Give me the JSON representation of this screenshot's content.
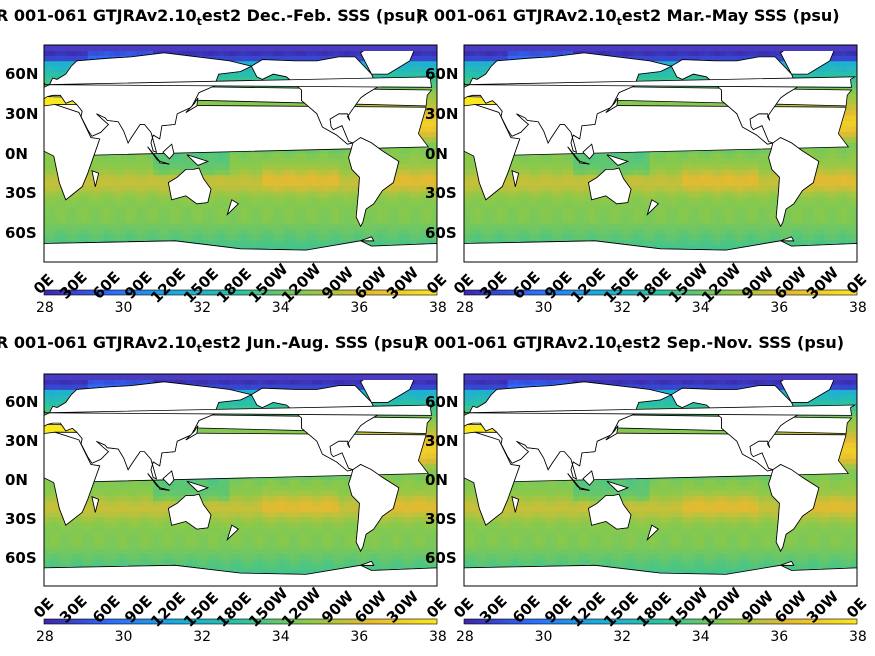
{
  "figure": {
    "panels": [
      {
        "title_pre": "R 001-061 GTJRAv2.10",
        "title_sub": "t",
        "title_post": "est2 Dec.-Feb. SSS (psu)"
      },
      {
        "title_pre": "R 001-061 GTJRAv2.10",
        "title_sub": "t",
        "title_post": "est2 Mar.-May SSS (psu)"
      },
      {
        "title_pre": "R 001-061 GTJRAv2.10",
        "title_sub": "t",
        "title_post": "est2 Jun.-Aug. SSS (psu)"
      },
      {
        "title_pre": "R 001-061 GTJRAv2.10",
        "title_sub": "t",
        "title_post": "est2 Sep.-Nov. SSS (psu)"
      }
    ],
    "lat_ticks": [
      "60N",
      "30N",
      "0N",
      "30S",
      "60S"
    ],
    "lon_ticks": [
      "0E",
      "30E",
      "60E",
      "90E",
      "120E",
      "150E",
      "180E",
      "150W",
      "120W",
      "90W",
      "60W",
      "30W",
      "0E"
    ],
    "colorbar_ticks": [
      "28",
      "30",
      "32",
      "34",
      "36",
      "38"
    ],
    "colorbar_range": [
      28,
      38
    ],
    "colormap": [
      "#3e26a8",
      "#2f6bf9",
      "#1caadf",
      "#2bc3a1",
      "#8bc94a",
      "#e8ba30",
      "#f9e81f"
    ],
    "land_color": "#ffffff",
    "ice_color": "#ffffff"
  },
  "chart_data": {
    "type": "heatmap",
    "variable": "SSS (psu)",
    "color_range": [
      28,
      38
    ],
    "x_axis": "longitude 0E-360E",
    "y_axis": "latitude 80S-80N",
    "panels": [
      "Dec.-Feb.",
      "Mar.-May",
      "Jun.-Aug.",
      "Sep.-Nov."
    ]
  }
}
